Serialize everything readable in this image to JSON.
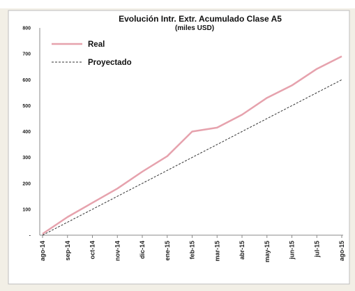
{
  "chart_data": {
    "type": "line",
    "title": "Evolución Intr. Extr. Acumulado Clase A5",
    "subtitle": "(miles USD)",
    "xlabel": "",
    "ylabel": "",
    "categories": [
      "ago-14",
      "sep-14",
      "oct-14",
      "nov-14",
      "dic-14",
      "ene-15",
      "feb-15",
      "mar-15",
      "abr-15",
      "may-15",
      "jun-15",
      "jul-15",
      "ago-15"
    ],
    "y_ticks": [
      "800",
      "700",
      "600",
      "500",
      "400",
      "300",
      "200",
      "100",
      "-"
    ],
    "ylim": [
      0,
      800
    ],
    "grid": false,
    "legend_position": "top-left",
    "series": [
      {
        "name": "Real",
        "color": "#e6a2ad",
        "style": "solid",
        "values": [
          5,
          70,
          125,
          180,
          245,
          305,
          400,
          415,
          465,
          530,
          578,
          642,
          690
        ]
      },
      {
        "name": "Proyectado",
        "color": "#333333",
        "style": "dashed",
        "values": [
          0,
          50,
          100,
          150,
          200,
          250,
          300,
          350,
          400,
          450,
          500,
          550,
          600
        ]
      }
    ]
  }
}
